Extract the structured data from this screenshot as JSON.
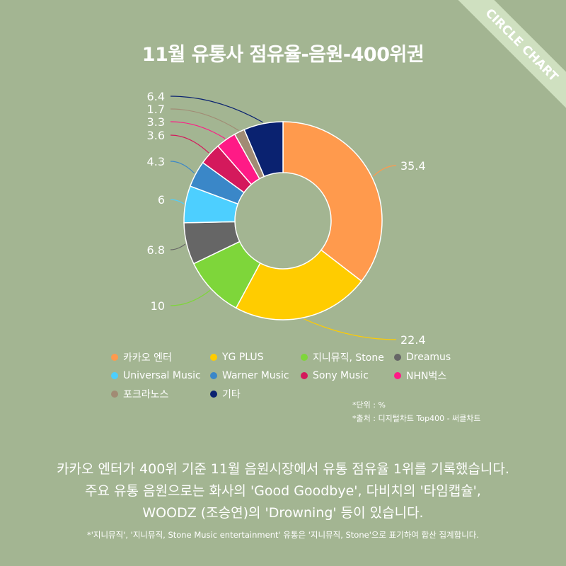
{
  "title": "11월 유통사 점유율-음원-400위권",
  "badge": "CIRCLE CHART",
  "chart_data": {
    "type": "pie",
    "style": "donut",
    "title": "11월 유통사 점유율-음원-400위권",
    "unit": "%",
    "categories": [
      "카카오 엔터",
      "YG PLUS",
      "지니뮤직, Stone",
      "Dreamus",
      "Universal Music",
      "Warner Music",
      "Sony Music",
      "NHN벅스",
      "포크라노스",
      "기타"
    ],
    "values": [
      35.4,
      22.4,
      10,
      6.8,
      6,
      4.3,
      3.6,
      3.3,
      1.7,
      6.4
    ],
    "value_labels": [
      "35.4",
      "22.4",
      "10",
      "6.8",
      "6",
      "4.3",
      "3.6",
      "3.3",
      "1.7",
      "6.4"
    ],
    "colors": [
      "#ff9a4d",
      "#ffcc00",
      "#7ed63a",
      "#666666",
      "#4dcfff",
      "#3a87c8",
      "#d4195c",
      "#ff1a86",
      "#a18b74",
      "#0a2270"
    ],
    "legend_placement": "bottom",
    "grid": false
  },
  "notes": {
    "unit": "*단위 : %",
    "source": "*출처 : 디지털차트 Top400 - 써클차트"
  },
  "summary": {
    "line1": "카카오 엔터가 400위 기준 11월 음원시장에서 유통 점유율 1위를 기록했습니다.",
    "line2": "주요 유통 음원으로는 화사의 'Good Goodbye', 다비치의 '타임캡슐',",
    "line3": "WOODZ (조승연)의 'Drowning' 등이 있습니다."
  },
  "footnote": "*'지니뮤직', '지니뮤직, Stone Music entertainment' 유통은 '지니뮤직, Stone'으로 표기하여 합산 집계합니다."
}
